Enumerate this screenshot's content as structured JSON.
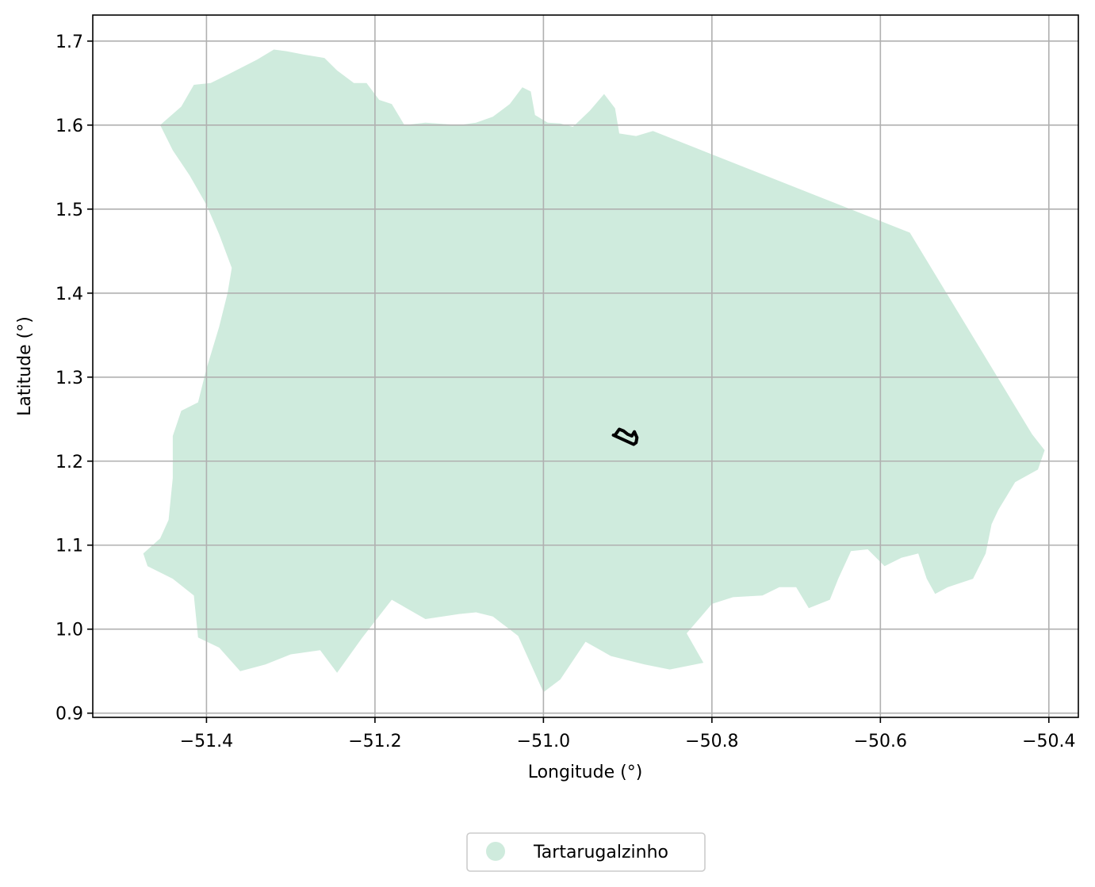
{
  "chart_data": {
    "type": "map",
    "xlabel": "Longitude (°)",
    "ylabel": "Latitude (°)",
    "xlim": [
      -51.535,
      -50.365
    ],
    "ylim": [
      0.895,
      1.731
    ],
    "x_ticks": [
      -51.4,
      -51.2,
      -51.0,
      -50.8,
      -50.6,
      -50.4
    ],
    "x_tick_labels": [
      "−51.4",
      "−51.2",
      "−51.0",
      "−50.8",
      "−50.6",
      "−50.4"
    ],
    "y_ticks": [
      0.9,
      1.0,
      1.1,
      1.2,
      1.3,
      1.4,
      1.5,
      1.6,
      1.7
    ],
    "y_tick_labels": [
      "0.9",
      "1.0",
      "1.1",
      "1.2",
      "1.3",
      "1.4",
      "1.5",
      "1.6",
      "1.7"
    ],
    "grid": true,
    "legend": {
      "placement": "bottom-center",
      "entries": [
        "Tartarugalzinho"
      ]
    },
    "colors": {
      "region_fill": "#cfebdd",
      "outline": "#000000",
      "grid": "#b0b0b0"
    },
    "regions": [
      {
        "name": "Tartarugalzinho",
        "boundary": [
          [
            -51.455,
            1.6
          ],
          [
            -51.43,
            1.622
          ],
          [
            -51.415,
            1.648
          ],
          [
            -51.395,
            1.65
          ],
          [
            -51.375,
            1.66
          ],
          [
            -51.34,
            1.678
          ],
          [
            -51.32,
            1.69
          ],
          [
            -51.305,
            1.688
          ],
          [
            -51.285,
            1.684
          ],
          [
            -51.26,
            1.68
          ],
          [
            -51.245,
            1.665
          ],
          [
            -51.225,
            1.65
          ],
          [
            -51.21,
            1.65
          ],
          [
            -51.195,
            1.63
          ],
          [
            -51.18,
            1.625
          ],
          [
            -51.165,
            1.6
          ],
          [
            -51.14,
            1.603
          ],
          [
            -51.1,
            1.6
          ],
          [
            -51.08,
            1.603
          ],
          [
            -51.06,
            1.61
          ],
          [
            -51.04,
            1.625
          ],
          [
            -51.025,
            1.645
          ],
          [
            -51.015,
            1.64
          ],
          [
            -51.01,
            1.612
          ],
          [
            -50.995,
            1.603
          ],
          [
            -50.98,
            1.602
          ],
          [
            -50.965,
            1.598
          ],
          [
            -50.945,
            1.617
          ],
          [
            -50.928,
            1.637
          ],
          [
            -50.915,
            1.62
          ],
          [
            -50.91,
            1.59
          ],
          [
            -50.89,
            1.587
          ],
          [
            -50.87,
            1.593
          ],
          [
            -50.565,
            1.472
          ],
          [
            -50.42,
            1.232
          ],
          [
            -50.405,
            1.213
          ],
          [
            -50.413,
            1.19
          ],
          [
            -50.44,
            1.175
          ],
          [
            -50.46,
            1.142
          ],
          [
            -50.468,
            1.125
          ],
          [
            -50.475,
            1.09
          ],
          [
            -50.49,
            1.06
          ],
          [
            -50.52,
            1.05
          ],
          [
            -50.535,
            1.042
          ],
          [
            -50.545,
            1.06
          ],
          [
            -50.555,
            1.09
          ],
          [
            -50.575,
            1.085
          ],
          [
            -50.595,
            1.075
          ],
          [
            -50.615,
            1.095
          ],
          [
            -50.635,
            1.093
          ],
          [
            -50.65,
            1.06
          ],
          [
            -50.66,
            1.035
          ],
          [
            -50.685,
            1.025
          ],
          [
            -50.7,
            1.05
          ],
          [
            -50.72,
            1.05
          ],
          [
            -50.74,
            1.04
          ],
          [
            -50.775,
            1.038
          ],
          [
            -50.8,
            1.03
          ],
          [
            -50.83,
            0.995
          ],
          [
            -50.81,
            0.96
          ],
          [
            -50.85,
            0.952
          ],
          [
            -50.88,
            0.958
          ],
          [
            -50.92,
            0.968
          ],
          [
            -50.95,
            0.985
          ],
          [
            -50.98,
            0.94
          ],
          [
            -51.0,
            0.925
          ],
          [
            -51.03,
            0.992
          ],
          [
            -51.06,
            1.015
          ],
          [
            -51.08,
            1.02
          ],
          [
            -51.1,
            1.018
          ],
          [
            -51.14,
            1.012
          ],
          [
            -51.18,
            1.035
          ],
          [
            -51.215,
            0.99
          ],
          [
            -51.245,
            0.948
          ],
          [
            -51.265,
            0.975
          ],
          [
            -51.3,
            0.97
          ],
          [
            -51.33,
            0.958
          ],
          [
            -51.36,
            0.95
          ],
          [
            -51.385,
            0.978
          ],
          [
            -51.41,
            0.99
          ],
          [
            -51.415,
            1.04
          ],
          [
            -51.44,
            1.06
          ],
          [
            -51.47,
            1.075
          ],
          [
            -51.475,
            1.09
          ],
          [
            -51.455,
            1.108
          ],
          [
            -51.445,
            1.13
          ],
          [
            -51.44,
            1.18
          ],
          [
            -51.44,
            1.23
          ],
          [
            -51.43,
            1.26
          ],
          [
            -51.41,
            1.27
          ],
          [
            -51.4,
            1.31
          ],
          [
            -51.385,
            1.36
          ],
          [
            -51.375,
            1.4
          ],
          [
            -51.37,
            1.43
          ],
          [
            -51.385,
            1.47
          ],
          [
            -51.4,
            1.505
          ],
          [
            -51.42,
            1.54
          ],
          [
            -51.44,
            1.57
          ],
          [
            -51.45,
            1.59
          ]
        ]
      }
    ],
    "outlines": [
      {
        "name": "Tartarugalzinho",
        "boundary": [
          [
            -50.915,
            1.231
          ],
          [
            -50.91,
            1.238
          ],
          [
            -50.905,
            1.236
          ],
          [
            -50.9,
            1.232
          ],
          [
            -50.895,
            1.23
          ],
          [
            -50.892,
            1.235
          ],
          [
            -50.889,
            1.228
          ],
          [
            -50.89,
            1.222
          ],
          [
            -50.893,
            1.22
          ],
          [
            -50.917,
            1.231
          ]
        ]
      }
    ]
  }
}
